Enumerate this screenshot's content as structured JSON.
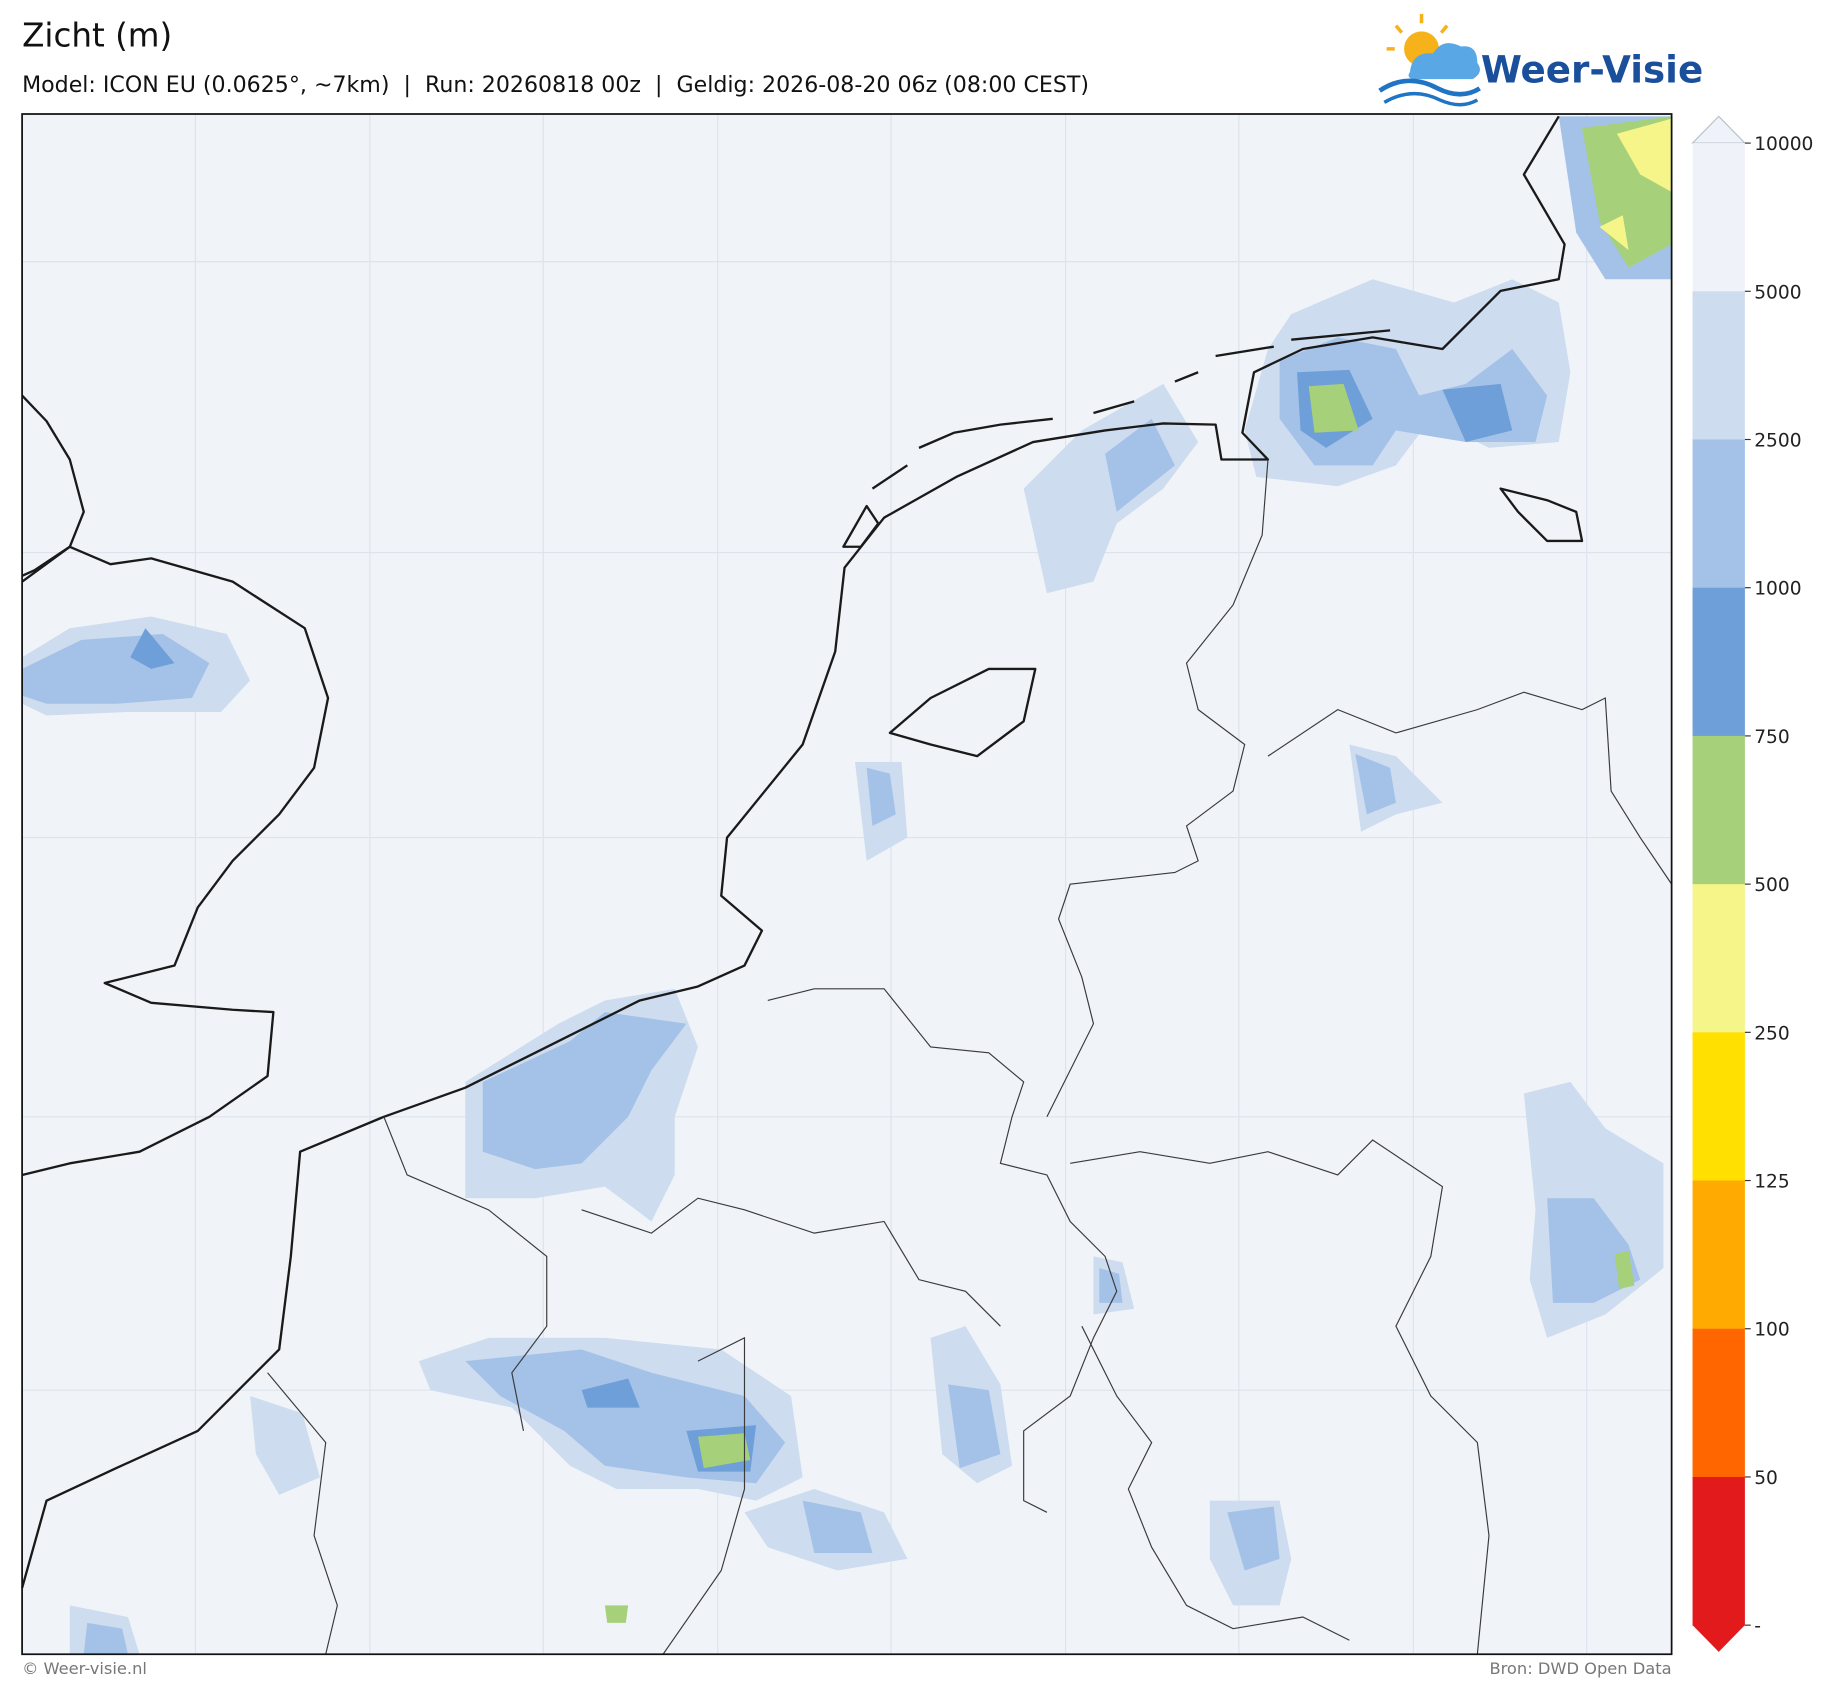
{
  "header": {
    "title": "Zicht (m)",
    "subtitle": "Model: ICON EU (0.0625°, ~7km)  |  Run: 20260818 00z  |  Geldig: 2026-08-20 06z (08:00 CEST)",
    "logo": "Weer-Visie"
  },
  "colorbar": {
    "tick_labels": [
      10000,
      5000,
      2500,
      1000,
      750,
      500,
      250,
      125,
      100,
      50,
      "-"
    ],
    "colors": [
      "#eff3f9",
      "#cddcef",
      "#a4c2e8",
      "#6f9fd8",
      "#a6d07a",
      "#f5f58a",
      "#ffe000",
      "#ffaa00",
      "#ff6600",
      "#e31a1c"
    ],
    "over_color": "#eff3f9",
    "under_color": "#e31a1c"
  },
  "footer": {
    "left": "© Weer-visie.nl",
    "right": "Bron: DWD Open Data"
  }
}
